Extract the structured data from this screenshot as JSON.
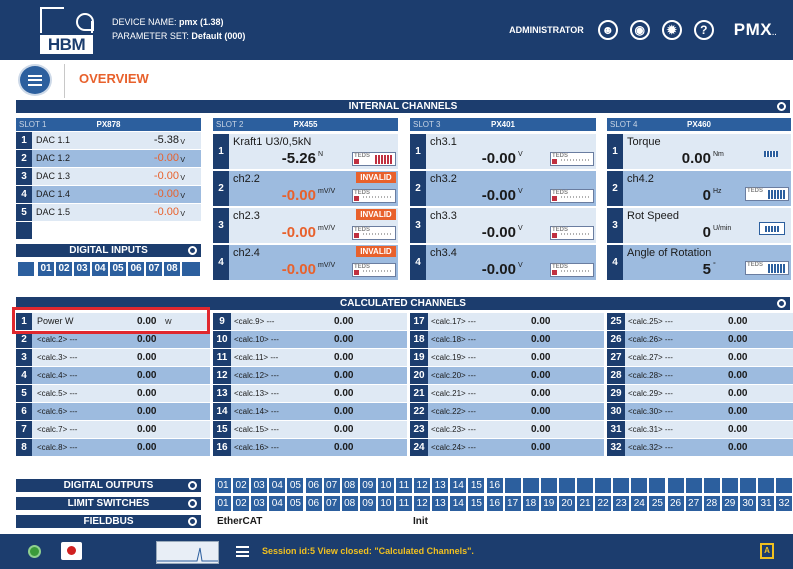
{
  "header": {
    "device_label": "DEVICE NAME:",
    "device_name": "pmx (1.38)",
    "param_label": "PARAMETER SET:",
    "param_value": "Default (000)",
    "role": "ADMINISTRATOR",
    "logo_text": "HBM",
    "brand": "PMX",
    "brand_suffix": ".."
  },
  "page": {
    "title": "OVERVIEW"
  },
  "internal": {
    "title": "INTERNAL CHANNELS",
    "slots": [
      {
        "slot": "SLOT 1",
        "module": "PX878"
      },
      {
        "slot": "SLOT 2",
        "module": "PX455"
      },
      {
        "slot": "SLOT 3",
        "module": "PX401"
      },
      {
        "slot": "SLOT 4",
        "module": "PX460"
      }
    ],
    "dac": [
      {
        "num": "1",
        "label": "DAC 1.1",
        "value": "-5.38",
        "unit": "V",
        "color": "#1a1a1a"
      },
      {
        "num": "2",
        "label": "DAC 1.2",
        "value": "-0.00",
        "unit": "V",
        "color": "#e8612c"
      },
      {
        "num": "3",
        "label": "DAC 1.3",
        "value": "-0.00",
        "unit": "V",
        "color": "#e8612c"
      },
      {
        "num": "4",
        "label": "DAC 1.4",
        "value": "-0.00",
        "unit": "V",
        "color": "#e8612c"
      },
      {
        "num": "5",
        "label": "DAC 1.5",
        "value": "-0.00",
        "unit": "V",
        "color": "#e8612c"
      }
    ],
    "slot2": [
      {
        "num": "1",
        "name": "Kraft1 U3/0,5kN",
        "value": "-5.26",
        "unit": "N",
        "badge": ""
      },
      {
        "num": "2",
        "name": "ch2.2",
        "value": "-0.00",
        "unit": "mV/V",
        "badge": "INVALID"
      },
      {
        "num": "3",
        "name": "ch2.3",
        "value": "-0.00",
        "unit": "mV/V",
        "badge": "INVALID"
      },
      {
        "num": "4",
        "name": "ch2.4",
        "value": "-0.00",
        "unit": "mV/V",
        "badge": "INVALID"
      }
    ],
    "slot3": [
      {
        "num": "1",
        "name": "ch3.1",
        "value": "-0.00",
        "unit": "V"
      },
      {
        "num": "2",
        "name": "ch3.2",
        "value": "-0.00",
        "unit": "V"
      },
      {
        "num": "3",
        "name": "ch3.3",
        "value": "-0.00",
        "unit": "V"
      },
      {
        "num": "4",
        "name": "ch3.4",
        "value": "-0.00",
        "unit": "V"
      }
    ],
    "slot4": [
      {
        "num": "1",
        "name": "Torque",
        "value": "0.00",
        "unit": "Nm"
      },
      {
        "num": "2",
        "name": "ch4.2",
        "value": "0",
        "unit": "Hz"
      },
      {
        "num": "3",
        "name": "Rot Speed",
        "value": "0",
        "unit": "U/min"
      },
      {
        "num": "4",
        "name": "Angle of Rotation",
        "value": "5",
        "unit": "°"
      }
    ],
    "badge_text": "TEDS"
  },
  "digital_inputs": {
    "title": "DIGITAL INPUTS",
    "items": [
      "01",
      "02",
      "03",
      "04",
      "05",
      "06",
      "07",
      "08"
    ]
  },
  "calculated": {
    "title": "CALCULATED CHANNELS",
    "rows": [
      {
        "num": "1",
        "name": "Power W",
        "value": "0.00",
        "unit": "W"
      },
      {
        "num": "2",
        "name": "<calc.2> ---",
        "value": "0.00"
      },
      {
        "num": "3",
        "name": "<calc.3> ---",
        "value": "0.00"
      },
      {
        "num": "4",
        "name": "<calc.4> ---",
        "value": "0.00"
      },
      {
        "num": "5",
        "name": "<calc.5> ---",
        "value": "0.00"
      },
      {
        "num": "6",
        "name": "<calc.6> ---",
        "value": "0.00"
      },
      {
        "num": "7",
        "name": "<calc.7> ---",
        "value": "0.00"
      },
      {
        "num": "8",
        "name": "<calc.8> ---",
        "value": "0.00"
      },
      {
        "num": "9",
        "name": "<calc.9> ---",
        "value": "0.00"
      },
      {
        "num": "10",
        "name": "<calc.10> ---",
        "value": "0.00"
      },
      {
        "num": "11",
        "name": "<calc.11> ---",
        "value": "0.00"
      },
      {
        "num": "12",
        "name": "<calc.12> ---",
        "value": "0.00"
      },
      {
        "num": "13",
        "name": "<calc.13> ---",
        "value": "0.00"
      },
      {
        "num": "14",
        "name": "<calc.14> ---",
        "value": "0.00"
      },
      {
        "num": "15",
        "name": "<calc.15> ---",
        "value": "0.00"
      },
      {
        "num": "16",
        "name": "<calc.16> ---",
        "value": "0.00"
      },
      {
        "num": "17",
        "name": "<calc.17> ---",
        "value": "0.00"
      },
      {
        "num": "18",
        "name": "<calc.18> ---",
        "value": "0.00"
      },
      {
        "num": "19",
        "name": "<calc.19> ---",
        "value": "0.00"
      },
      {
        "num": "20",
        "name": "<calc.20> ---",
        "value": "0.00"
      },
      {
        "num": "21",
        "name": "<calc.21> ---",
        "value": "0.00"
      },
      {
        "num": "22",
        "name": "<calc.22> ---",
        "value": "0.00"
      },
      {
        "num": "23",
        "name": "<calc.23> ---",
        "value": "0.00"
      },
      {
        "num": "24",
        "name": "<calc.24> ---",
        "value": "0.00"
      },
      {
        "num": "25",
        "name": "<calc.25> ---",
        "value": "0.00"
      },
      {
        "num": "26",
        "name": "<calc.26> ---",
        "value": "0.00"
      },
      {
        "num": "27",
        "name": "<calc.27> ---",
        "value": "0.00"
      },
      {
        "num": "28",
        "name": "<calc.28> ---",
        "value": "0.00"
      },
      {
        "num": "29",
        "name": "<calc.29> ---",
        "value": "0.00"
      },
      {
        "num": "30",
        "name": "<calc.30> ---",
        "value": "0.00"
      },
      {
        "num": "31",
        "name": "<calc.31> ---",
        "value": "0.00"
      },
      {
        "num": "32",
        "name": "<calc.32> ---",
        "value": "0.00"
      }
    ]
  },
  "digital_outputs": {
    "title": "DIGITAL OUTPUTS",
    "items": [
      "01",
      "02",
      "03",
      "04",
      "05",
      "06",
      "07",
      "08",
      "09",
      "10",
      "11",
      "12",
      "13",
      "14",
      "15",
      "16"
    ]
  },
  "limit_switches": {
    "title": "LIMIT SWITCHES",
    "items": [
      "01",
      "02",
      "03",
      "04",
      "05",
      "06",
      "07",
      "08",
      "09",
      "10",
      "11",
      "12",
      "13",
      "14",
      "15",
      "16",
      "17",
      "18",
      "19",
      "20",
      "21",
      "22",
      "23",
      "24",
      "25",
      "26",
      "27",
      "28",
      "29",
      "30",
      "31",
      "32"
    ]
  },
  "fieldbus": {
    "title": "FIELDBUS",
    "protocol": "EtherCAT",
    "state": "Init"
  },
  "status": {
    "message": "Session id:5 View closed: \"Calculated Channels\"."
  },
  "colors": {
    "accent": "#e8612c",
    "navy": "#1c3d6e",
    "blue": "#2c5f9e",
    "highlight": "#e0282e"
  }
}
